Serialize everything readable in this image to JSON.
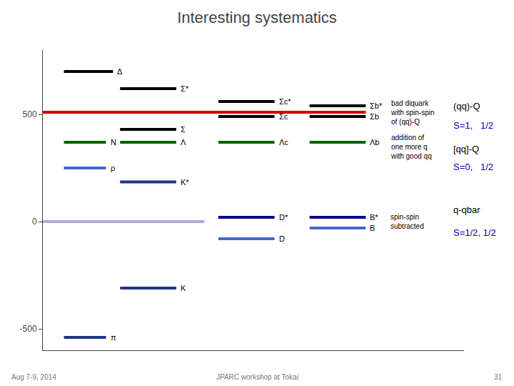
{
  "chart_data": {
    "type": "line",
    "title": "Interesting systematics",
    "xlim": [
      0,
      6
    ],
    "ylim": [
      -600,
      800
    ],
    "yticks": [
      -500,
      0,
      500
    ],
    "grid": false,
    "tick_labels": "y",
    "series": [
      {
        "color": "#cc0000",
        "x": [
          0.0,
          3.3,
          4.6
        ],
        "values": [
          510,
          510,
          510
        ]
      },
      {
        "label": "Δ",
        "color": "#000000",
        "x": [
          0.3,
          1.0
        ],
        "values": [
          700,
          700
        ]
      },
      {
        "label": "Σ*",
        "color": "#000000",
        "x": [
          1.1,
          1.9
        ],
        "values": [
          620,
          620
        ]
      },
      {
        "label": "Σc*",
        "color": "#000000",
        "x": [
          2.5,
          3.3
        ],
        "values": [
          560,
          560
        ]
      },
      {
        "label": "Σb*",
        "color": "#000000",
        "x": [
          3.8,
          4.6
        ],
        "values": [
          540,
          540
        ]
      },
      {
        "label": "Σc",
        "color": "#000000",
        "x": [
          2.5,
          3.3
        ],
        "values": [
          490,
          490
        ]
      },
      {
        "label": "Σb",
        "color": "#000000",
        "x": [
          3.8,
          4.6
        ],
        "values": [
          490,
          490
        ]
      },
      {
        "label": "Σ",
        "color": "#000000",
        "x": [
          1.1,
          1.9
        ],
        "values": [
          430,
          430
        ]
      },
      {
        "label": "N",
        "color": "#006400",
        "x": [
          0.3,
          0.9
        ],
        "values": [
          370,
          370
        ]
      },
      {
        "label": "Λ",
        "color": "#006400",
        "x": [
          1.1,
          1.9
        ],
        "values": [
          370,
          370
        ]
      },
      {
        "label": "Λc",
        "color": "#006400",
        "x": [
          2.5,
          3.3
        ],
        "values": [
          370,
          370
        ]
      },
      {
        "label": "Λb",
        "color": "#006400",
        "x": [
          3.8,
          4.6
        ],
        "values": [
          370,
          370
        ]
      },
      {
        "label": "ρ",
        "color": "#4466cc",
        "x": [
          0.3,
          0.9
        ],
        "values": [
          250,
          250
        ]
      },
      {
        "label": "K*",
        "color": "#223388",
        "x": [
          1.1,
          1.9
        ],
        "values": [
          185,
          185
        ]
      },
      {
        "color": "#aaaadd",
        "x": [
          0.0,
          2.3
        ],
        "values": [
          0,
          0
        ]
      },
      {
        "label": "D*",
        "color": "#000088",
        "x": [
          2.5,
          3.3
        ],
        "values": [
          20,
          20
        ]
      },
      {
        "label": "B*",
        "color": "#000088",
        "x": [
          3.8,
          4.6
        ],
        "values": [
          20,
          20
        ]
      },
      {
        "label": "B",
        "color": "#4466cc",
        "x": [
          3.8,
          4.6
        ],
        "values": [
          -30,
          -30
        ]
      },
      {
        "label": "D",
        "color": "#4466cc",
        "x": [
          2.5,
          3.3
        ],
        "values": [
          -80,
          -80
        ]
      },
      {
        "label": "K",
        "color": "#223388",
        "x": [
          1.1,
          1.9
        ],
        "values": [
          -310,
          -310
        ]
      },
      {
        "label": "π",
        "color": "#223388",
        "x": [
          0.3,
          0.9
        ],
        "values": [
          -540,
          -540
        ]
      }
    ],
    "annotations": [
      {
        "text": "bad diquark\nwith spin-spin\nof (qq)-Q",
        "x": 4.85,
        "y": 510,
        "color": "#000000"
      },
      {
        "text": "addition of\none more q\nwith good qq",
        "x": 4.85,
        "y": 350,
        "color": "#000000"
      },
      {
        "text": "spin-spin\nsubtracted",
        "x": 4.85,
        "y": 0,
        "color": "#000000"
      }
    ],
    "side_notes": [
      {
        "text": "(qq)-Q",
        "x": 5.7,
        "y": 540,
        "color": "#000000"
      },
      {
        "text": "S=1,   1/2",
        "x": 5.7,
        "y": 450,
        "color": "#0000bb"
      },
      {
        "text": "[qq]-Q",
        "x": 5.7,
        "y": 340,
        "color": "#000000"
      },
      {
        "text": "S=0,   1/2",
        "x": 5.7,
        "y": 255,
        "color": "#0000bb"
      },
      {
        "text": "q-qbar",
        "x": 5.7,
        "y": 55,
        "color": "#000000"
      },
      {
        "text": "S=1/2, 1/2",
        "x": 5.7,
        "y": -50,
        "color": "#0000bb"
      }
    ],
    "footer": [
      "Aug 7-9, 2014",
      "JPARC workshop at Tokai",
      "31"
    ]
  }
}
